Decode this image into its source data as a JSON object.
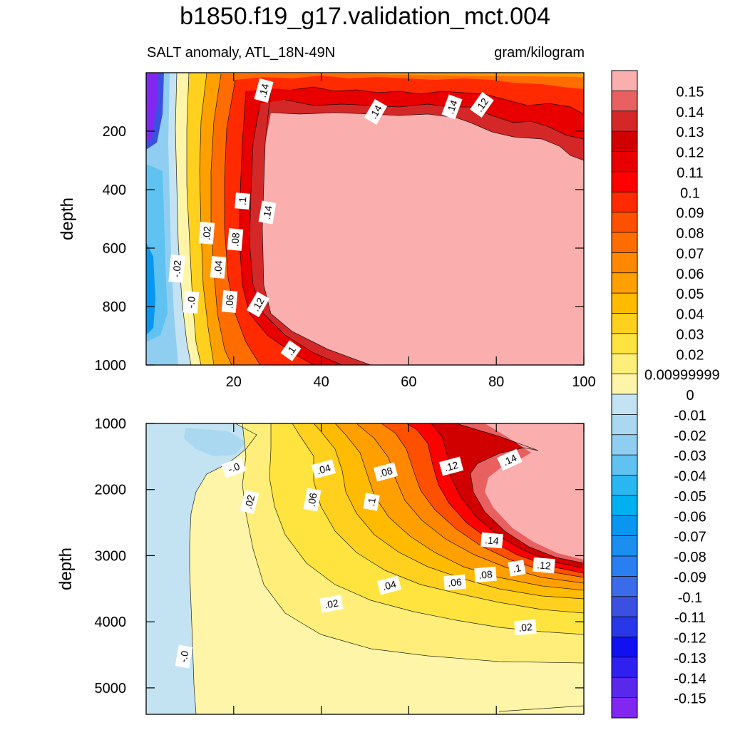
{
  "title": "b1850.f19_g17.validation_mct.004",
  "panels": [
    {
      "left_label": "SALT anomaly, ATL_18N-49N",
      "right_label": "gram/kilogram"
    }
  ],
  "chart_data": [
    {
      "type": "contour",
      "id": "upper",
      "ylabel": "depth",
      "ylim": [
        0,
        1000
      ],
      "yticks": [
        "200",
        "400",
        "600",
        "800",
        "1000"
      ],
      "xlim": [
        0,
        100
      ],
      "xticks": [
        "20",
        "40",
        "60",
        "80",
        "100"
      ],
      "contour_labels": [
        ".14",
        ".14",
        ".14",
        ".12",
        ".1",
        ".14",
        ".02",
        ".08",
        "-.02",
        ".04",
        "-.0",
        ".06",
        ".12",
        ".1"
      ]
    },
    {
      "type": "contour",
      "id": "lower",
      "ylabel": "depth",
      "ylim": [
        1000,
        5400
      ],
      "yticks": [
        "1000",
        "2000",
        "3000",
        "4000",
        "5000"
      ],
      "contour_labels": [
        "-.0",
        ".04",
        ".08",
        ".12",
        ".14",
        ".02",
        ".06",
        ".1",
        ".14",
        ".1",
        ".12",
        ".08",
        ".06",
        ".04",
        ".02",
        ".02",
        "-.0"
      ]
    }
  ],
  "colorbar": {
    "levels": [
      "0.15",
      "0.14",
      "0.13",
      "0.12",
      "0.11",
      "0.1",
      "0.09",
      "0.08",
      "0.07",
      "0.06",
      "0.05",
      "0.04",
      "0.03",
      "0.02",
      "0.00999999",
      "0",
      "-0.01",
      "-0.02",
      "-0.03",
      "-0.04",
      "-0.05",
      "-0.06",
      "-0.07",
      "-0.08",
      "-0.09",
      "-0.1",
      "-0.11",
      "-0.12",
      "-0.13",
      "-0.14",
      "-0.15"
    ],
    "colors": [
      "#fbaeae",
      "#e86060",
      "#d42828",
      "#d00000",
      "#e80000",
      "#ff0000",
      "#ff2a00",
      "#ff5000",
      "#ff6d00",
      "#ff8800",
      "#ffa000",
      "#ffbb00",
      "#ffd11e",
      "#ffe440",
      "#ffef7a",
      "#fff5a8",
      "#c3e3f3",
      "#a9d8f0",
      "#8fcef0",
      "#60c2f0",
      "#2ab6f0",
      "#00b0f0",
      "#0896f0",
      "#1a8ff0",
      "#2a7ff0",
      "#3a6be8",
      "#3a50e0",
      "#2838e8",
      "#1010f0",
      "#3020f0",
      "#5a28ea",
      "#8028f0"
    ]
  }
}
